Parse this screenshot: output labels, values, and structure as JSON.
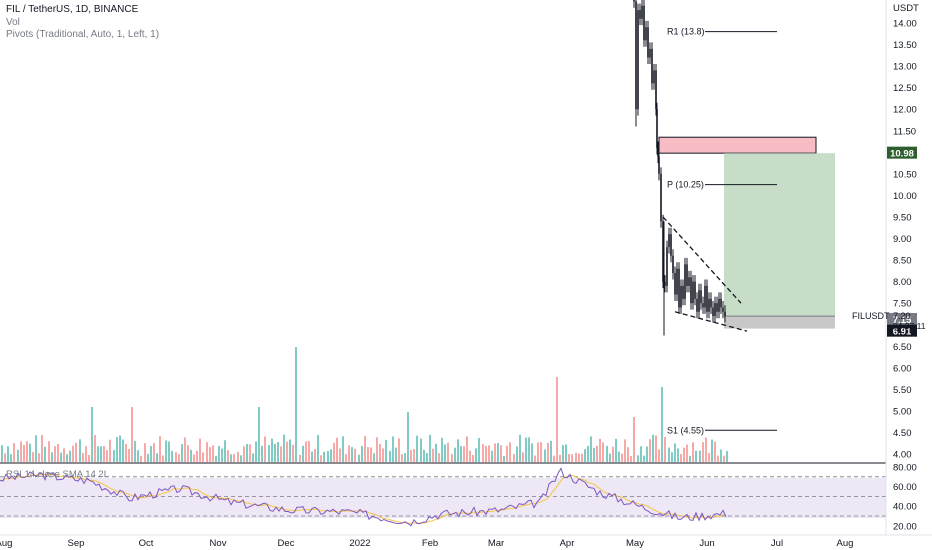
{
  "legend": {
    "symbol": "FIL / TetherUS, 1D, BINANCE",
    "vol": "Vol",
    "pivots": "Pivots (Traditional, Auto, 1, Left, 1)"
  },
  "rsi_legend": "RSI 14 close SMA 14 2L",
  "price_axis": {
    "currency": "USDT",
    "ticks": [
      "14.00",
      "13.50",
      "13.00",
      "12.50",
      "12.00",
      "11.50",
      "11.00",
      "10.50",
      "10.00",
      "9.50",
      "9.00",
      "8.50",
      "8.00",
      "7.50",
      "7.00",
      "6.50",
      "6.00",
      "5.50",
      "5.00",
      "4.50",
      "4.00"
    ],
    "badges": {
      "target": "10.98",
      "last": "7.15",
      "stop": "6.91",
      "current": "7.20",
      "countdown": "04:37:11",
      "symbol": "FILUSDT"
    }
  },
  "rsi_axis": {
    "ticks": [
      "80.00",
      "60.00",
      "40.00",
      "20.00"
    ]
  },
  "time_axis": {
    "labels": [
      "Aug",
      "Sep",
      "Oct",
      "Nov",
      "Dec",
      "2022",
      "Feb",
      "Mar",
      "Apr",
      "May",
      "Jun",
      "Jul",
      "Aug"
    ]
  },
  "pivots": [
    {
      "label": "R1 (13.8)",
      "value": 13.8
    },
    {
      "label": "P (10.25)",
      "value": 10.25
    },
    {
      "label": "S1 (4.55)",
      "value": 4.55
    }
  ],
  "colors": {
    "up": "#26a69a",
    "down": "#ef5350",
    "vol_up": "#80cbc4",
    "vol_down": "#f7a9a7",
    "target_zone": "#b9d4b9",
    "stop_zone": "#c8c8c8",
    "supply_zone": "#f8bcc4",
    "rsi_line": "#7e57c2",
    "rsi_ma": "#f5c542",
    "rsi_band": "#ede7f6",
    "badge_dark": "#131722",
    "badge_green": "#2e5e2e",
    "badge_grey": "#787b86"
  },
  "chart_data": [
    {
      "type": "candlestick",
      "title": "FIL / TetherUS, 1D, BINANCE",
      "ylim": [
        3.9,
        14.3
      ],
      "x": [
        "2022-05-01",
        "2022-05-05",
        "2022-05-09",
        "2022-05-11",
        "2022-05-13",
        "2022-05-16",
        "2022-05-20",
        "2022-05-24",
        "2022-05-28",
        "2022-06-01",
        "2022-06-05",
        "2022-06-09"
      ],
      "close": [
        14.2,
        12.6,
        10.9,
        8.2,
        8.9,
        8.4,
        8.1,
        7.8,
        7.4,
        7.6,
        7.3,
        7.2
      ],
      "pattern": "falling wedge",
      "zones": {
        "supply": [
          10.98,
          11.35
        ],
        "target": [
          7.2,
          10.98
        ],
        "stop": [
          6.91,
          7.2
        ]
      }
    },
    {
      "type": "bar",
      "title": "Vol",
      "note": "volume histogram, relative scale (no axis printed)"
    },
    {
      "type": "line",
      "title": "RSI 14 close SMA 14 2L",
      "ylim": [
        15,
        82
      ],
      "levels": [
        70,
        50,
        30
      ],
      "x": [
        "Aug",
        "Sep",
        "Oct",
        "Nov",
        "Dec",
        "2022",
        "Feb",
        "Mar",
        "Apr",
        "May",
        "Jun"
      ],
      "series": [
        {
          "values": [
            68,
            60,
            52,
            44,
            34,
            38,
            31,
            42,
            74,
            44,
            33
          ]
        }
      ]
    }
  ]
}
